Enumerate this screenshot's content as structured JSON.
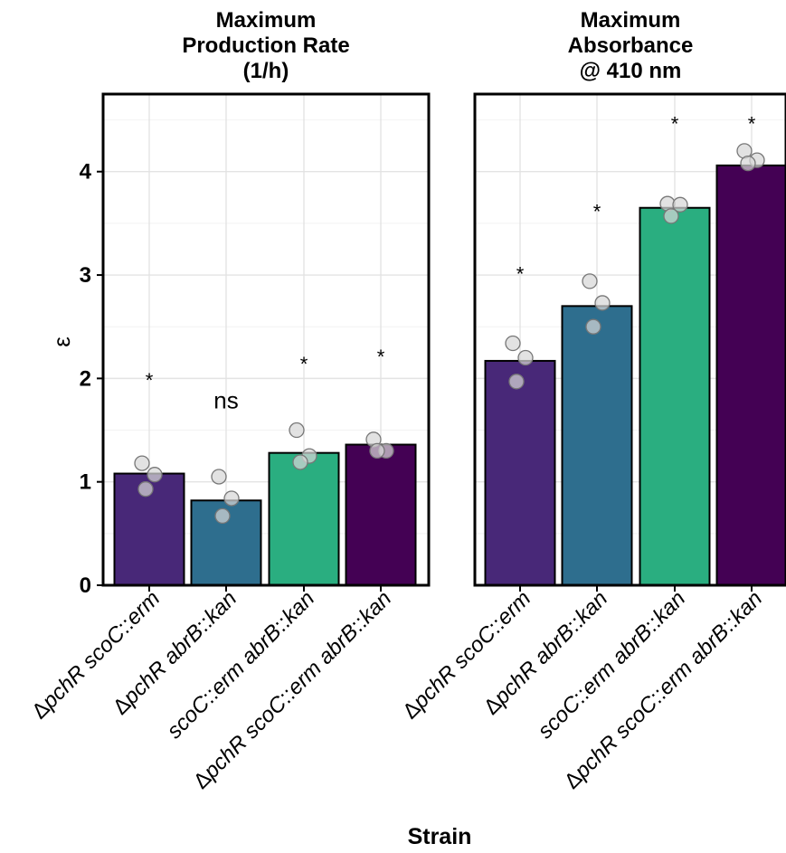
{
  "chart_data": {
    "type": "bar",
    "ylabel": "ε",
    "xlabel": "Strain",
    "ylim": [
      0,
      4.75
    ],
    "yticks": [
      "0",
      "1",
      "2",
      "3",
      "4"
    ],
    "grid": true,
    "legend": "none",
    "category_labels": [
      {
        "prefix": "Δ",
        "parts": [
          [
            "pchR",
            true
          ],
          [
            " ",
            false
          ],
          [
            "scoC",
            true
          ],
          [
            "::",
            false
          ],
          [
            "erm",
            true
          ]
        ]
      },
      {
        "prefix": "Δ",
        "parts": [
          [
            "pchR",
            true
          ],
          [
            " ",
            false
          ],
          [
            "abrB",
            true
          ],
          [
            "::",
            false
          ],
          [
            "kan",
            true
          ]
        ]
      },
      {
        "prefix": "",
        "parts": [
          [
            "scoC",
            true
          ],
          [
            "::",
            false
          ],
          [
            "erm",
            true
          ],
          [
            " ",
            false
          ],
          [
            "abrB",
            true
          ],
          [
            "::",
            false
          ],
          [
            "kan",
            true
          ]
        ]
      },
      {
        "prefix": "Δ",
        "parts": [
          [
            "pchR",
            true
          ],
          [
            " ",
            false
          ],
          [
            "scoC",
            true
          ],
          [
            "::",
            false
          ],
          [
            "erm",
            true
          ],
          [
            " ",
            false
          ],
          [
            "abrB",
            true
          ],
          [
            "::",
            false
          ],
          [
            "kan",
            true
          ]
        ]
      }
    ],
    "bar_colors": [
      "#482878",
      "#2e6e8e",
      "#2aae80",
      "#440154"
    ],
    "panels": [
      {
        "title_lines": [
          "Maximum",
          "Production Rate",
          "(1/h)"
        ],
        "values": [
          1.08,
          0.82,
          1.28,
          1.36
        ],
        "points": [
          [
            1.18,
            1.07,
            0.93
          ],
          [
            1.05,
            0.84,
            0.67
          ],
          [
            1.5,
            1.25,
            1.19
          ],
          [
            1.41,
            1.3,
            1.3
          ]
        ],
        "significance": [
          "*",
          "ns",
          "*",
          "*"
        ],
        "sig_y": [
          2.02,
          1.78,
          2.18,
          2.25
        ]
      },
      {
        "title_lines": [
          "Maximum",
          "Absorbance",
          "@ 410 nm"
        ],
        "values": [
          2.17,
          2.7,
          3.65,
          4.06
        ],
        "points": [
          [
            2.34,
            2.2,
            1.97
          ],
          [
            2.94,
            2.73,
            2.5
          ],
          [
            3.69,
            3.68,
            3.57
          ],
          [
            4.2,
            4.11,
            4.08
          ]
        ],
        "significance": [
          "*",
          "*",
          "*",
          "*"
        ],
        "sig_y": [
          3.05,
          3.65,
          4.5,
          4.5
        ]
      }
    ]
  }
}
